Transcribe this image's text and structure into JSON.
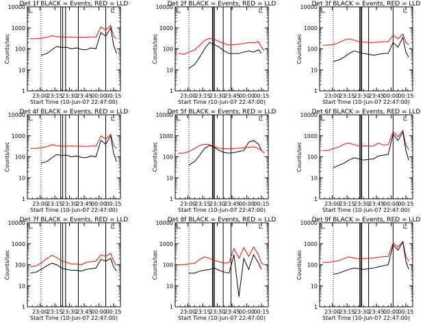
{
  "chart_data": {
    "type": "line",
    "layout": "3x3 grid of panels",
    "y_scale": "log",
    "ylim": [
      1,
      10000
    ],
    "ylabel": "Counts/sec",
    "y_tick_labels": [
      "1",
      "10",
      "100",
      "1000",
      "10000"
    ],
    "xlabel": "Start Time (10-Jun-07 22:47:00)",
    "x_tick_labels": [
      "23:00",
      "23:15",
      "23:30",
      "23:45",
      "00:00",
      "00:15"
    ],
    "x_unit": "minutes since 22:47:00",
    "x_range": [
      0,
      95
    ],
    "x_ticks": [
      13,
      28,
      43,
      58,
      73,
      88
    ],
    "series_colors": {
      "events": "#000000",
      "lld": "#ff0000"
    },
    "panels": [
      {
        "title": "Det 1f BLACK = Events, RED = LLD",
        "x": [
          3,
          9,
          14,
          20,
          25,
          30,
          35,
          40,
          45,
          50,
          55,
          60,
          65,
          70,
          75,
          80,
          85,
          88,
          91
        ],
        "events": [
          null,
          null,
          50,
          60,
          90,
          130,
          115,
          120,
          100,
          110,
          95,
          90,
          110,
          100,
          600,
          400,
          1000,
          150,
          60
        ],
        "lld": [
          300,
          300,
          320,
          350,
          420,
          380,
          360,
          360,
          370,
          350,
          360,
          350,
          370,
          360,
          1100,
          800,
          1300,
          400,
          300
        ],
        "vlines": [
          34,
          36,
          39,
          52,
          80
        ],
        "dotted_x": 14
      },
      {
        "title": "Det 2f BLACK = Events, RED = LLD",
        "x": [
          3,
          9,
          14,
          20,
          25,
          30,
          35,
          40,
          45,
          50,
          55,
          60,
          65,
          70,
          75,
          80,
          85,
          88,
          91
        ],
        "events": [
          null,
          null,
          12,
          18,
          40,
          100,
          200,
          160,
          120,
          80,
          60,
          60,
          60,
          70,
          80,
          70,
          90,
          60,
          null
        ],
        "lld": [
          60,
          55,
          70,
          90,
          150,
          250,
          320,
          280,
          220,
          180,
          150,
          160,
          170,
          180,
          200,
          190,
          220,
          120,
          80
        ],
        "vlines": [
          38,
          39,
          40,
          49,
          57
        ],
        "dotted_x": 14
      },
      {
        "title": "Det 3f BLACK = Events, RED = LLD",
        "x": [
          3,
          9,
          14,
          20,
          25,
          30,
          35,
          40,
          45,
          50,
          55,
          60,
          65,
          70,
          75,
          80,
          85,
          88,
          91
        ],
        "events": [
          null,
          null,
          25,
          30,
          40,
          60,
          80,
          70,
          60,
          55,
          50,
          55,
          60,
          60,
          200,
          120,
          350,
          70,
          40
        ],
        "lld": [
          150,
          150,
          160,
          200,
          260,
          300,
          260,
          220,
          210,
          200,
          200,
          210,
          220,
          220,
          450,
          300,
          500,
          200,
          160
        ],
        "vlines": [
          41,
          42,
          43,
          50,
          75
        ],
        "dotted_x": 14
      },
      {
        "title": "Det 4f BLACK = Events, RED = LLD",
        "x": [
          3,
          9,
          14,
          20,
          25,
          30,
          35,
          40,
          45,
          50,
          55,
          60,
          65,
          70,
          75,
          80,
          85,
          88,
          91
        ],
        "events": [
          null,
          null,
          50,
          60,
          90,
          130,
          115,
          120,
          100,
          110,
          95,
          90,
          110,
          100,
          600,
          400,
          1000,
          150,
          60
        ],
        "lld": [
          250,
          250,
          270,
          300,
          380,
          340,
          320,
          320,
          330,
          320,
          320,
          310,
          330,
          320,
          1000,
          700,
          1200,
          350,
          250
        ],
        "vlines": [
          34,
          36,
          39,
          52,
          80
        ],
        "dotted_x": 14
      },
      {
        "title": "Det 5f BLACK = Events, RED = LLD",
        "x": [
          3,
          9,
          14,
          20,
          25,
          30,
          35,
          40,
          45,
          50,
          55,
          60,
          65,
          70,
          75,
          80,
          85,
          88,
          91
        ],
        "events": [
          null,
          null,
          40,
          60,
          120,
          250,
          350,
          280,
          200,
          160,
          150,
          160,
          180,
          200,
          500,
          600,
          400,
          200,
          null
        ],
        "lld": [
          150,
          150,
          180,
          250,
          350,
          400,
          380,
          300,
          260,
          240,
          240,
          250,
          260,
          270,
          280,
          300,
          250,
          200,
          150
        ],
        "vlines": [
          38,
          39,
          40,
          49,
          57
        ],
        "dotted_x": 14
      },
      {
        "title": "Det 6f BLACK = Events, RED = LLD",
        "x": [
          3,
          9,
          14,
          20,
          25,
          30,
          35,
          40,
          45,
          50,
          55,
          60,
          65,
          70,
          75,
          80,
          85,
          88,
          91
        ],
        "events": [
          null,
          null,
          30,
          40,
          50,
          70,
          90,
          80,
          70,
          75,
          80,
          110,
          120,
          130,
          1200,
          600,
          1500,
          200,
          70
        ],
        "lld": [
          200,
          200,
          250,
          300,
          400,
          450,
          380,
          330,
          340,
          320,
          330,
          450,
          360,
          380,
          1600,
          900,
          1800,
          350,
          220
        ],
        "vlines": [
          41,
          42,
          43,
          50,
          75
        ],
        "dotted_x": 14
      },
      {
        "title": "Det 7f BLACK = Events, RED = LLD",
        "x": [
          3,
          9,
          14,
          20,
          25,
          30,
          35,
          40,
          45,
          50,
          55,
          60,
          65,
          70,
          75,
          80,
          85,
          88,
          91
        ],
        "events": [
          40,
          45,
          60,
          90,
          120,
          100,
          70,
          60,
          55,
          55,
          50,
          60,
          65,
          70,
          180,
          150,
          200,
          80,
          50
        ],
        "lld": [
          80,
          90,
          120,
          200,
          280,
          220,
          150,
          130,
          110,
          110,
          100,
          130,
          140,
          150,
          300,
          250,
          350,
          150,
          90
        ],
        "vlines": [
          34,
          36,
          39,
          52,
          80
        ],
        "dotted_x": 14
      },
      {
        "title": "Det 8f BLACK = Events, RED = LLD",
        "x": [
          3,
          9,
          14,
          20,
          25,
          30,
          35,
          40,
          45,
          50,
          55,
          60,
          65,
          70,
          75,
          80,
          85,
          88,
          91
        ],
        "events": [
          null,
          null,
          40,
          40,
          50,
          55,
          60,
          70,
          55,
          45,
          40,
          300,
          3,
          200,
          60,
          300,
          120,
          60,
          null
        ],
        "lld": [
          100,
          100,
          110,
          120,
          180,
          240,
          200,
          160,
          140,
          120,
          130,
          600,
          200,
          650,
          250,
          700,
          300,
          120,
          100
        ],
        "vlines": [
          38,
          39,
          40,
          49,
          57
        ],
        "dotted_x": 14
      },
      {
        "title": "Det 9f BLACK = Events, RED = LLD",
        "x": [
          3,
          9,
          14,
          20,
          25,
          30,
          35,
          40,
          45,
          50,
          55,
          60,
          65,
          70,
          75,
          80,
          85,
          88,
          91
        ],
        "events": [
          null,
          null,
          35,
          40,
          50,
          60,
          70,
          65,
          60,
          65,
          70,
          80,
          90,
          100,
          900,
          500,
          1200,
          150,
          60
        ],
        "lld": [
          130,
          130,
          140,
          160,
          200,
          240,
          210,
          190,
          200,
          200,
          210,
          230,
          240,
          250,
          1100,
          700,
          1300,
          250,
          150
        ],
        "vlines": [
          41,
          42,
          43,
          50,
          75
        ],
        "dotted_x": 14
      }
    ]
  }
}
